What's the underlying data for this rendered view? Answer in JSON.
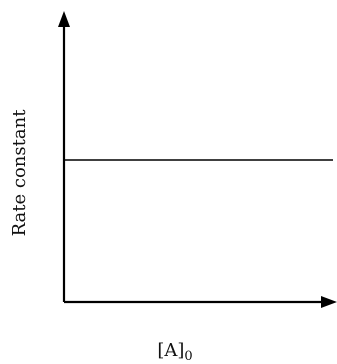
{
  "chart_data": {
    "type": "line",
    "title": "",
    "xlabel": "[A]",
    "xlabel_subscript": "0",
    "ylabel": "Rate constant",
    "series": [
      {
        "x": [
          0,
          1
        ],
        "values": [
          0.5,
          0.5
        ]
      }
    ],
    "xlim": [
      0,
      1
    ],
    "ylim": [
      0,
      1
    ],
    "grid": false,
    "legend": "none",
    "colors": {
      "axis": "#000000",
      "line": "#000000"
    }
  }
}
